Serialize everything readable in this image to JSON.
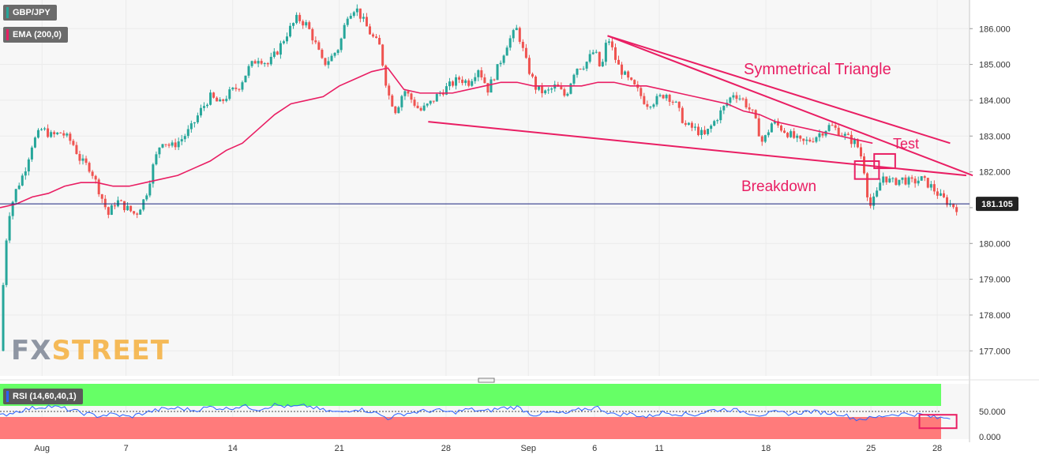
{
  "instrument_label": "GBP/JPY",
  "indicator_label": "EMA (200,0)",
  "rsi_label": "RSI (14,60,40,1)",
  "logo": {
    "part1": "FX",
    "part2": "STREET"
  },
  "last_price_label": "181.105",
  "colors": {
    "up": "#26a69a",
    "down": "#ef5350",
    "ema": "#e91e63",
    "pattern": "#e91e63",
    "rsi_line": "#2962ff",
    "rsi_upper": "#66ff66",
    "rsi_lower": "#ff7b7b",
    "price_line": "#1a237e",
    "background": "#f7f7f7"
  },
  "chart_data": {
    "type": "candlestick",
    "price_axis": {
      "ticks": [
        "186.000",
        "185.000",
        "184.000",
        "183.000",
        "182.000",
        "181.000",
        "180.000",
        "179.000",
        "178.000",
        "177.000"
      ],
      "range": [
        176.3,
        186.8
      ]
    },
    "time_axis": {
      "labels": [
        "Aug",
        "7",
        "14",
        "21",
        "28",
        "Sep",
        "6",
        "11",
        "18",
        "25",
        "28"
      ]
    },
    "price_series": [
      [
        0,
        177.0
      ],
      [
        0.3,
        179.8
      ],
      [
        0.6,
        180.9
      ],
      [
        1.0,
        181.5
      ],
      [
        1.5,
        182.0
      ],
      [
        2.0,
        182.8
      ],
      [
        2.6,
        183.2
      ],
      [
        3.2,
        183.0
      ],
      [
        3.8,
        183.1
      ],
      [
        4.5,
        182.8
      ],
      [
        5.0,
        182.3
      ],
      [
        5.6,
        182.1
      ],
      [
        6.2,
        181.4
      ],
      [
        6.7,
        180.8
      ],
      [
        7.2,
        181.2
      ],
      [
        7.8,
        181.0
      ],
      [
        8.4,
        180.8
      ],
      [
        9.0,
        181.3
      ],
      [
        9.5,
        182.2
      ],
      [
        10.0,
        182.9
      ],
      [
        10.6,
        182.7
      ],
      [
        11.2,
        182.9
      ],
      [
        11.8,
        183.2
      ],
      [
        12.4,
        183.7
      ],
      [
        13.0,
        184.1
      ],
      [
        13.6,
        183.9
      ],
      [
        14.2,
        184.2
      ],
      [
        14.8,
        184.4
      ],
      [
        15.4,
        184.9
      ],
      [
        16.0,
        185.2
      ],
      [
        16.6,
        185.0
      ],
      [
        17.2,
        185.4
      ],
      [
        17.8,
        185.9
      ],
      [
        18.4,
        186.3
      ],
      [
        19.0,
        186.1
      ],
      [
        19.5,
        185.6
      ],
      [
        20.0,
        185.0
      ],
      [
        20.5,
        185.2
      ],
      [
        21.0,
        185.5
      ],
      [
        21.5,
        186.4
      ],
      [
        22.0,
        186.6
      ],
      [
        22.5,
        186.2
      ],
      [
        23.0,
        185.8
      ],
      [
        23.5,
        185.5
      ],
      [
        24.0,
        184.2
      ],
      [
        24.5,
        183.7
      ],
      [
        25.0,
        184.3
      ],
      [
        25.5,
        184.0
      ],
      [
        26.0,
        183.7
      ],
      [
        26.6,
        183.9
      ],
      [
        27.2,
        184.2
      ],
      [
        27.8,
        184.4
      ],
      [
        28.4,
        184.6
      ],
      [
        29.0,
        184.5
      ],
      [
        29.6,
        184.9
      ],
      [
        30.2,
        184.3
      ],
      [
        30.8,
        184.9
      ],
      [
        31.4,
        185.6
      ],
      [
        32.0,
        186.0
      ],
      [
        32.6,
        185.0
      ],
      [
        33.2,
        184.3
      ],
      [
        33.8,
        184.2
      ],
      [
        34.4,
        184.4
      ],
      [
        35.0,
        184.1
      ],
      [
        35.6,
        184.9
      ],
      [
        36.2,
        185.0
      ],
      [
        36.8,
        185.4
      ],
      [
        37.2,
        184.8
      ],
      [
        37.6,
        185.8
      ],
      [
        38.2,
        185.0
      ],
      [
        38.8,
        184.6
      ],
      [
        39.4,
        184.3
      ],
      [
        40.0,
        183.9
      ],
      [
        40.6,
        184.0
      ],
      [
        41.2,
        184.2
      ],
      [
        41.8,
        183.9
      ],
      [
        42.4,
        183.3
      ],
      [
        43.0,
        183.2
      ],
      [
        43.6,
        183.0
      ],
      [
        44.2,
        183.4
      ],
      [
        44.8,
        183.8
      ],
      [
        45.4,
        184.2
      ],
      [
        46.0,
        184.0
      ],
      [
        46.6,
        183.6
      ],
      [
        47.2,
        182.8
      ],
      [
        47.8,
        183.4
      ],
      [
        48.4,
        183.2
      ],
      [
        49.0,
        183.0
      ],
      [
        49.6,
        182.8
      ],
      [
        50.2,
        182.9
      ],
      [
        50.8,
        183.1
      ],
      [
        51.4,
        183.3
      ],
      [
        52.0,
        183.1
      ],
      [
        52.6,
        182.9
      ],
      [
        53.0,
        182.8
      ],
      [
        53.4,
        182.3
      ],
      [
        53.8,
        181.0
      ],
      [
        54.2,
        181.3
      ],
      [
        54.6,
        181.9
      ],
      [
        55.2,
        181.7
      ],
      [
        55.8,
        181.8
      ],
      [
        56.4,
        181.7
      ],
      [
        57.0,
        181.8
      ],
      [
        57.6,
        181.6
      ],
      [
        58.2,
        181.3
      ],
      [
        58.8,
        181.1
      ],
      [
        59.2,
        181.0
      ]
    ],
    "ema_series": [
      [
        0,
        181.0
      ],
      [
        1.0,
        181.1
      ],
      [
        2.0,
        181.3
      ],
      [
        3.0,
        181.4
      ],
      [
        4.0,
        181.6
      ],
      [
        5.0,
        181.7
      ],
      [
        6.0,
        181.7
      ],
      [
        7.0,
        181.6
      ],
      [
        8.0,
        181.6
      ],
      [
        9.0,
        181.7
      ],
      [
        10.0,
        181.8
      ],
      [
        11.0,
        181.9
      ],
      [
        12.0,
        182.1
      ],
      [
        13.0,
        182.3
      ],
      [
        14.0,
        182.6
      ],
      [
        15.0,
        182.8
      ],
      [
        16.0,
        183.2
      ],
      [
        17.0,
        183.6
      ],
      [
        18.0,
        183.9
      ],
      [
        19.0,
        184.0
      ],
      [
        20.0,
        184.1
      ],
      [
        21.0,
        184.4
      ],
      [
        22.0,
        184.6
      ],
      [
        23.0,
        184.8
      ],
      [
        24.0,
        184.9
      ],
      [
        25.0,
        184.3
      ],
      [
        26.0,
        184.2
      ],
      [
        27.0,
        184.2
      ],
      [
        28.0,
        184.2
      ],
      [
        29.0,
        184.3
      ],
      [
        30.0,
        184.4
      ],
      [
        31.0,
        184.5
      ],
      [
        32.0,
        184.5
      ],
      [
        33.0,
        184.4
      ],
      [
        34.0,
        184.4
      ],
      [
        35.0,
        184.4
      ],
      [
        36.0,
        184.4
      ],
      [
        37.0,
        184.5
      ],
      [
        38.0,
        184.5
      ],
      [
        39.0,
        184.4
      ],
      [
        40.0,
        184.4
      ],
      [
        41.0,
        184.3
      ],
      [
        42.0,
        184.2
      ],
      [
        43.0,
        184.1
      ],
      [
        44.0,
        184.0
      ],
      [
        45.0,
        183.9
      ],
      [
        46.0,
        183.7
      ],
      [
        47.0,
        183.6
      ],
      [
        48.0,
        183.4
      ],
      [
        49.0,
        183.3
      ],
      [
        50.0,
        183.2
      ],
      [
        51.0,
        183.1
      ],
      [
        52.0,
        183.0
      ],
      [
        53.0,
        182.9
      ],
      [
        54.0,
        182.8
      ]
    ],
    "x_domain": [
      0,
      60
    ],
    "tick_positions": [
      2.6,
      7.8,
      14.4,
      21.0,
      27.6,
      32.7,
      36.8,
      40.8,
      47.4,
      53.9,
      58.0
    ],
    "rsi_series": [
      [
        0,
        42
      ],
      [
        1,
        50
      ],
      [
        2,
        56
      ],
      [
        3,
        60
      ],
      [
        4,
        55
      ],
      [
        5,
        48
      ],
      [
        6,
        42
      ],
      [
        7,
        45
      ],
      [
        8,
        40
      ],
      [
        9,
        48
      ],
      [
        10,
        54
      ],
      [
        11,
        56
      ],
      [
        12,
        52
      ],
      [
        13,
        58
      ],
      [
        14,
        55
      ],
      [
        15,
        60
      ],
      [
        16,
        54
      ],
      [
        17,
        62
      ],
      [
        18,
        58
      ],
      [
        19,
        60
      ],
      [
        20,
        52
      ],
      [
        21,
        48
      ],
      [
        22,
        55
      ],
      [
        23,
        50
      ],
      [
        24,
        38
      ],
      [
        25,
        46
      ],
      [
        26,
        50
      ],
      [
        27,
        52
      ],
      [
        28,
        48
      ],
      [
        29,
        54
      ],
      [
        30,
        50
      ],
      [
        31,
        56
      ],
      [
        32,
        58
      ],
      [
        33,
        44
      ],
      [
        34,
        48
      ],
      [
        35,
        46
      ],
      [
        36,
        54
      ],
      [
        37,
        57
      ],
      [
        38,
        44
      ],
      [
        39,
        46
      ],
      [
        40,
        40
      ],
      [
        41,
        48
      ],
      [
        42,
        46
      ],
      [
        43,
        44
      ],
      [
        44,
        52
      ],
      [
        45,
        54
      ],
      [
        46,
        50
      ],
      [
        47,
        44
      ],
      [
        48,
        48
      ],
      [
        49,
        46
      ],
      [
        50,
        50
      ],
      [
        51,
        48
      ],
      [
        52,
        46
      ],
      [
        53,
        36
      ],
      [
        54,
        38
      ],
      [
        55,
        44
      ],
      [
        56,
        46
      ],
      [
        57,
        44
      ],
      [
        58,
        38
      ],
      [
        59,
        40
      ]
    ],
    "rsi_axis": {
      "ticks": [
        "50.000",
        "0.000"
      ],
      "range": [
        0,
        100
      ],
      "upper_band": 60,
      "lower_band": 40
    },
    "annotations": {
      "triangle_title": "Symmetrical Triangle",
      "test_label": "Test",
      "breakdown_label": "Breakdown",
      "upper_line": [
        [
          37.6,
          185.8
        ],
        [
          58.8,
          182.8
        ]
      ],
      "lower_line": [
        [
          26.5,
          183.4
        ],
        [
          59.8,
          181.9
        ]
      ],
      "extended_line": [
        [
          37.6,
          185.8
        ],
        [
          60.2,
          181.9
        ]
      ],
      "boxes": [
        [
          52.9,
          182.3,
          54.4,
          181.8
        ],
        [
          54.1,
          182.5,
          55.4,
          182.1
        ]
      ],
      "rsi_box": [
        56.9,
        59.2
      ]
    },
    "last_price": 181.105
  }
}
